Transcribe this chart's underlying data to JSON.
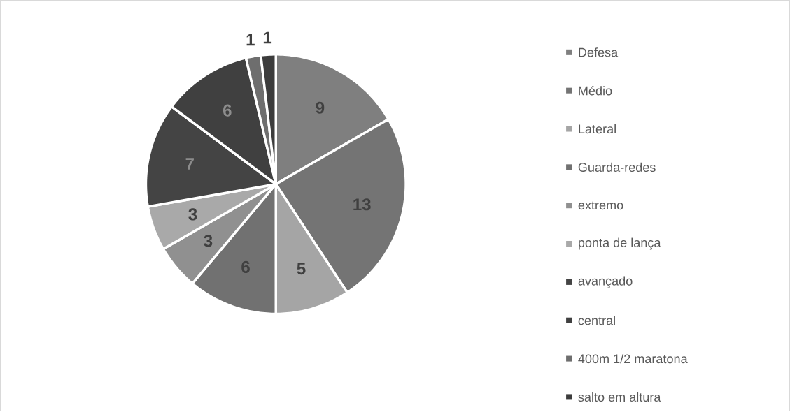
{
  "chart_data": {
    "type": "pie",
    "categories": [
      "Defesa",
      "Médio",
      "Lateral",
      "Guarda-redes",
      "extremo",
      "ponta de lança",
      "avançado",
      "central",
      "400m 1/2 maratona",
      "salto em altura"
    ],
    "values": [
      9,
      13,
      5,
      6,
      3,
      3,
      7,
      6,
      1,
      1
    ],
    "colors": [
      "#7f7f7f",
      "#747474",
      "#a5a5a5",
      "#717171",
      "#909090",
      "#a9a9a9",
      "#444444",
      "#404040",
      "#6e6e6e",
      "#3c3c3c"
    ],
    "data_labels": true,
    "legend": "right"
  }
}
